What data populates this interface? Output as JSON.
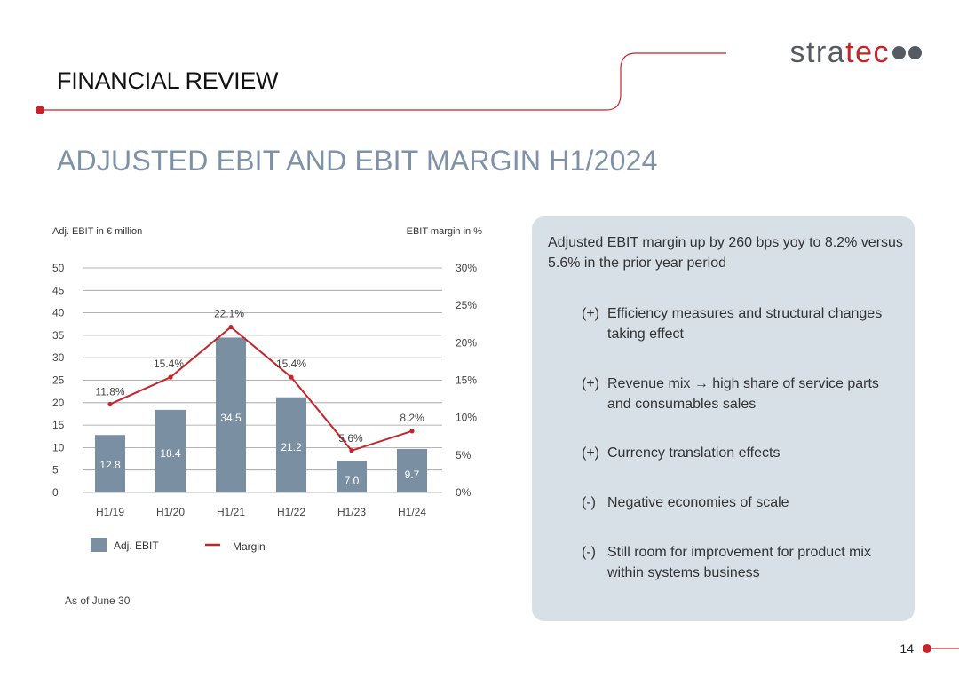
{
  "header": {
    "section_title": "FINANCIAL REVIEW",
    "logo": {
      "text_main": "stra",
      "text_accent": "tec",
      "accent_color": "#c4242a"
    }
  },
  "slide": {
    "title": "ADJUSTED EBIT AND EBIT MARGIN H1/2024",
    "note": "As of  June 30",
    "page_number": "14"
  },
  "chart_data": {
    "type": "bar",
    "categories": [
      "H1/19",
      "H1/20",
      "H1/21",
      "H1/22",
      "H1/23",
      "H1/24"
    ],
    "series": [
      {
        "name": "Adj. EBIT",
        "type": "bar",
        "axis": "left",
        "color": "#7b8fa3",
        "values": [
          12.8,
          18.4,
          34.5,
          21.2,
          7.0,
          9.7
        ],
        "labels": [
          "12.8",
          "18.4",
          "34.5",
          "21.2",
          "7.0",
          "9.7"
        ]
      },
      {
        "name": "Margin",
        "type": "line",
        "axis": "right",
        "color": "#c4242a",
        "values": [
          11.8,
          15.4,
          22.1,
          15.4,
          5.6,
          8.2
        ],
        "labels": [
          "11.8%",
          "15.4%",
          "22.1%",
          "15.4%",
          "5.6%",
          "8.2%"
        ]
      }
    ],
    "ylabel_left": "Adj. EBIT in € million",
    "ylabel_right": "EBIT margin in %",
    "ylim_left": [
      0,
      50
    ],
    "ylim_right": [
      0,
      30
    ],
    "yticks_left": [
      "0",
      "5",
      "10",
      "15",
      "20",
      "25",
      "30",
      "35",
      "40",
      "45",
      "50"
    ],
    "yticks_right": [
      "0%",
      "5%",
      "10%",
      "15%",
      "20%",
      "25%",
      "30%"
    ],
    "grid": true,
    "legend_position": "bottom"
  },
  "panel": {
    "headline": "Adjusted EBIT margin up by 260 bps yoy to 8.2% versus 5.6% in the prior year period",
    "bullets": [
      {
        "marker": "(+)",
        "text": "Efficiency measures and structural changes taking effect"
      },
      {
        "marker": "(+)",
        "text": "Revenue mix → high share of service parts and consumables sales"
      },
      {
        "marker": "(+)",
        "text": "Currency translation effects"
      },
      {
        "marker": "(-)",
        "text": "Negative economies of scale"
      },
      {
        "marker": "(-)",
        "text": "Still room for improvement for product mix within systems business"
      }
    ]
  }
}
